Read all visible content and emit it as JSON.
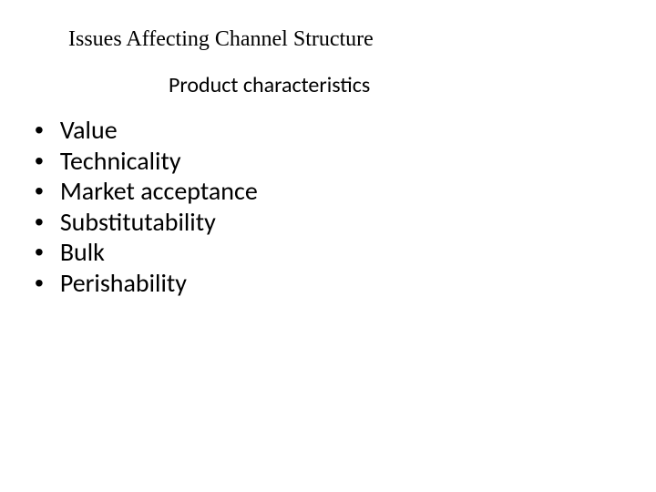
{
  "title": "Issues  Affecting Channel Structure",
  "subtitle": "Product characteristics",
  "bullets": {
    "items": [
      "Value",
      "Technicality",
      "Market acceptance",
      "Substitutability",
      "Bulk",
      "Perishability"
    ]
  },
  "styling": {
    "background_color": "#ffffff",
    "text_color": "#000000",
    "title_fontsize": 24,
    "title_font": "Times New Roman",
    "subtitle_fontsize": 24,
    "subtitle_font": "Calibri",
    "bullet_fontsize": 28,
    "bullet_font": "Calibri",
    "bullet_marker": "•"
  }
}
